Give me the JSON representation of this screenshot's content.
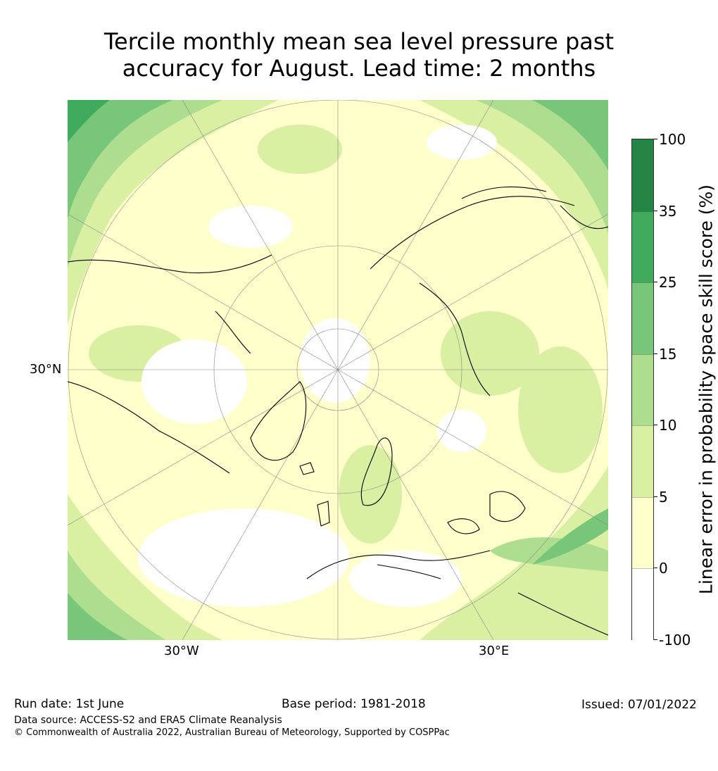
{
  "title_line1": "Tercile monthly mean sea level pressure past",
  "title_line2": "accuracy for August. Lead time: 2 months",
  "map": {
    "projection": "north-polar-stereographic",
    "lat_label": "30°N",
    "lon_labels": [
      "30°W",
      "30°E"
    ]
  },
  "colorbar": {
    "label": "Linear error in probability space skill score (%)",
    "ticks": [
      "100",
      "35",
      "25",
      "15",
      "10",
      "5",
      "0",
      "-100"
    ],
    "bins": [
      {
        "range": "-100 to 0",
        "color": "#ffffff"
      },
      {
        "range": "0 to 5",
        "color": "#ffffcc"
      },
      {
        "range": "5 to 10",
        "color": "#d9f0a3"
      },
      {
        "range": "10 to 15",
        "color": "#addd8e"
      },
      {
        "range": "15 to 25",
        "color": "#78c679"
      },
      {
        "range": "25 to 35",
        "color": "#41ab5d"
      },
      {
        "range": "35 to 100",
        "color": "#238443"
      }
    ]
  },
  "footer": {
    "run_date": "Run date: 1st June",
    "base_period": "Base period: 1981-2018",
    "issued": "Issued: 07/01/2022",
    "data_source": "Data source: ACCESS-S2 and ERA5 Climate Reanalysis",
    "copyright": "© Commonwealth of Australia 2022, Australian Bureau of Meteorology, Supported by COSPPac"
  }
}
